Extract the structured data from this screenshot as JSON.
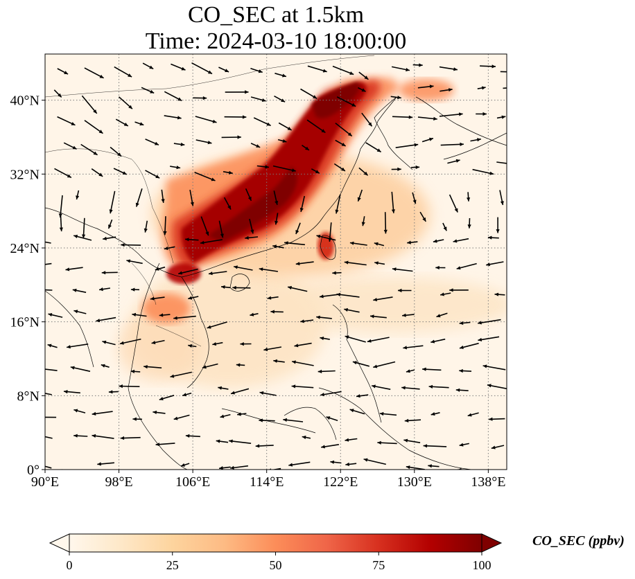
{
  "title": {
    "line1": "CO_SEC at 1.5km",
    "line2": "Time: 2024-03-10 18:00:00"
  },
  "map": {
    "projection": "plate-carree",
    "lon_range": [
      90,
      140
    ],
    "lat_range": [
      0,
      45
    ],
    "lon_ticks": [
      {
        "value": 90,
        "label": "90°E"
      },
      {
        "value": 98,
        "label": "98°E"
      },
      {
        "value": 106,
        "label": "106°E"
      },
      {
        "value": 114,
        "label": "114°E"
      },
      {
        "value": 122,
        "label": "122°E"
      },
      {
        "value": 130,
        "label": "130°E"
      },
      {
        "value": 138,
        "label": "138°E"
      }
    ],
    "lat_ticks": [
      {
        "value": 0,
        "label": "0°"
      },
      {
        "value": 8,
        "label": "8°N"
      },
      {
        "value": 16,
        "label": "16°N"
      },
      {
        "value": 24,
        "label": "24°N"
      },
      {
        "value": 32,
        "label": "32°N"
      },
      {
        "value": 40,
        "label": "40°N"
      }
    ],
    "gridlines": "dotted"
  },
  "colorbar": {
    "label": "CO_SEC (ppbv)",
    "range": [
      0,
      100
    ],
    "ticks": [
      {
        "value": 0,
        "label": "0"
      },
      {
        "value": 25,
        "label": "25"
      },
      {
        "value": 50,
        "label": "50"
      },
      {
        "value": 75,
        "label": "75"
      },
      {
        "value": 100,
        "label": "100"
      }
    ],
    "colormap": "OrRd",
    "extend": "both",
    "stops": [
      "#fff7ec",
      "#fee8c8",
      "#fdd49e",
      "#fdbb84",
      "#fc8d59",
      "#ef6548",
      "#d7301f",
      "#b30000",
      "#7f0000"
    ]
  }
}
